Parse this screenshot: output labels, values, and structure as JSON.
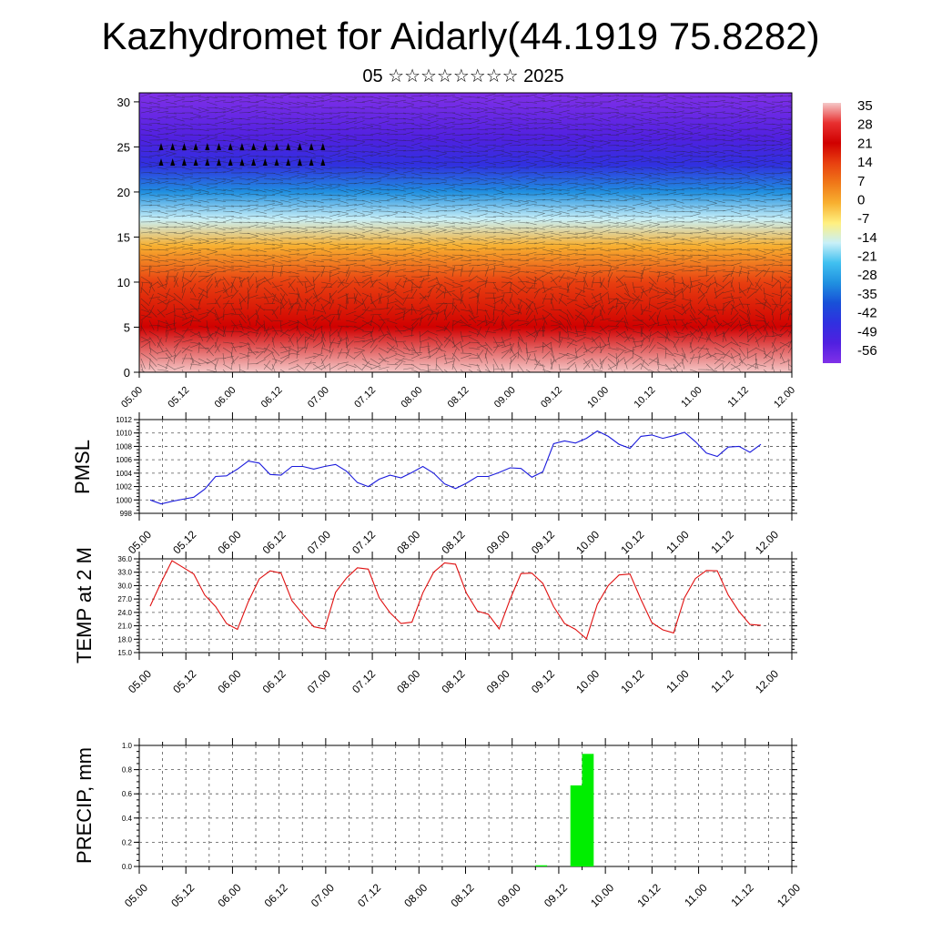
{
  "title": "Kazhydromet for Aidarly(44.1919 75.8282)",
  "subtitle": "05 ☆☆☆☆☆☆☆☆ 2025",
  "time_labels": [
    "05.00",
    "05.12",
    "06.00",
    "06.12",
    "07.00",
    "07.12",
    "08.00",
    "08.12",
    "09.00",
    "09.12",
    "10.00",
    "10.12",
    "11.00",
    "11.12",
    "12.00"
  ],
  "colors": {
    "pmsl_line": "#1a1adc",
    "temp_line": "#e01010",
    "precip_bar": "#00ee00",
    "grid": "#000000"
  },
  "chart_data": [
    {
      "type": "heatmap",
      "name": "cross-section",
      "x": [
        "05.00",
        "05.12",
        "06.00",
        "06.12",
        "07.00",
        "07.12",
        "08.00",
        "08.12",
        "09.00",
        "09.12",
        "10.00",
        "10.12",
        "11.00",
        "11.12",
        "12.00"
      ],
      "ylim": [
        0,
        31
      ],
      "yticks": [
        0,
        5,
        10,
        15,
        20,
        25,
        30
      ],
      "colorbar_labels": [
        "35",
        "28",
        "21",
        "14",
        "7",
        "0",
        "-7",
        "-14",
        "-21",
        "-28",
        "-35",
        "-42",
        "-49",
        "-56"
      ],
      "colorbar_colors": [
        "#f5c8c8",
        "#e83030",
        "#d00000",
        "#e84010",
        "#f07818",
        "#f8b030",
        "#fff080",
        "#c8f0f8",
        "#40c0f0",
        "#2090e0",
        "#1850d8",
        "#3030e0",
        "#5020e0",
        "#8030e8"
      ],
      "temperature_profile": [
        {
          "height": 0,
          "value": 32
        },
        {
          "height": 5,
          "value": 24
        },
        {
          "height": 10,
          "value": 12
        },
        {
          "height": 14,
          "value": -4
        },
        {
          "height": 17,
          "value": -14
        },
        {
          "height": 20,
          "value": -28
        },
        {
          "height": 23,
          "value": -42
        },
        {
          "height": 26,
          "value": -52
        },
        {
          "height": 31,
          "value": -60
        }
      ]
    },
    {
      "type": "line",
      "name": "pmsl",
      "ylabel": "PMSL",
      "ylim": [
        998,
        1012
      ],
      "yticks": [
        "998",
        "1000",
        "1002",
        "1004",
        "1006",
        "1008",
        "1010",
        "1012"
      ],
      "x": [
        0,
        3,
        6,
        9,
        12,
        15,
        18,
        21,
        24,
        27,
        30,
        33,
        36,
        39,
        42,
        45,
        48,
        51,
        54,
        57,
        60,
        63,
        66,
        69,
        72,
        75,
        78,
        81,
        84,
        87,
        90,
        93,
        96,
        99,
        102,
        105,
        108,
        111,
        114,
        117,
        120,
        123,
        126,
        129,
        132,
        135,
        138,
        141,
        144,
        147,
        150,
        153,
        156,
        159,
        162,
        165,
        168
      ],
      "values": [
        1000,
        999.4,
        999.8,
        1000.1,
        1000.4,
        1001.6,
        1003.5,
        1003.6,
        1004.6,
        1005.8,
        1005.5,
        1003.8,
        1003.7,
        1005.0,
        1005.0,
        1004.6,
        1005.0,
        1005.3,
        1004.3,
        1002.6,
        1002.0,
        1003.1,
        1003.7,
        1003.3,
        1004.1,
        1005.0,
        1004.0,
        1002.4,
        1001.7,
        1002.5,
        1003.5,
        1003.5,
        1004.1,
        1004.8,
        1004.7,
        1003.4,
        1004.2,
        1008.4,
        1008.8,
        1008.5,
        1009.2,
        1010.3,
        1009.5,
        1008.3,
        1007.7,
        1009.5,
        1009.7,
        1009.2,
        1009.6,
        1010.1,
        1008.7,
        1007.0,
        1006.5,
        1007.9,
        1008.0,
        1007.1,
        1008.3
      ]
    },
    {
      "type": "line",
      "name": "temp",
      "ylabel": "TEMP at 2 M",
      "ylim": [
        15,
        36
      ],
      "yticks": [
        "15.0",
        "18.0",
        "21.0",
        "24.0",
        "27.0",
        "30.0",
        "33.0",
        "36.0"
      ],
      "x": [
        0,
        3,
        6,
        9,
        12,
        15,
        18,
        21,
        24,
        27,
        30,
        33,
        36,
        39,
        42,
        45,
        48,
        51,
        54,
        57,
        60,
        63,
        66,
        69,
        72,
        75,
        78,
        81,
        84,
        87,
        90,
        93,
        96,
        99,
        102,
        105,
        108,
        111,
        114,
        117,
        120,
        123,
        126,
        129,
        132,
        135,
        138,
        141,
        144,
        147,
        150,
        153,
        156,
        159,
        162,
        165,
        168
      ],
      "values": [
        25.4,
        30.7,
        35.6,
        34.1,
        32.6,
        27.9,
        25.3,
        21.5,
        20.2,
        26.4,
        31.5,
        33.3,
        32.8,
        26.6,
        23.6,
        20.8,
        20.3,
        28.5,
        31.7,
        34.0,
        33.7,
        27.3,
        23.9,
        21.5,
        21.8,
        28.4,
        33.0,
        35.1,
        34.8,
        28.3,
        24.3,
        23.6,
        20.3,
        26.9,
        32.7,
        32.8,
        30.5,
        25.3,
        21.5,
        20.2,
        18.1,
        25.8,
        30.0,
        32.4,
        32.6,
        26.9,
        21.7,
        20.1,
        19.4,
        27.3,
        31.6,
        33.4,
        33.3,
        27.9,
        24.2,
        21.3,
        21.1
      ]
    },
    {
      "type": "bar",
      "name": "precip",
      "ylabel": "PRECIP, mm",
      "ylim": [
        0,
        1.0
      ],
      "yticks": [
        "0.0",
        "0.2",
        "0.4",
        "0.6",
        "0.8",
        "1.0"
      ],
      "bars": [
        {
          "x": 102,
          "value": 0.01
        },
        {
          "x": 111,
          "value": 0.67
        },
        {
          "x": 114,
          "value": 0.93
        }
      ]
    }
  ]
}
